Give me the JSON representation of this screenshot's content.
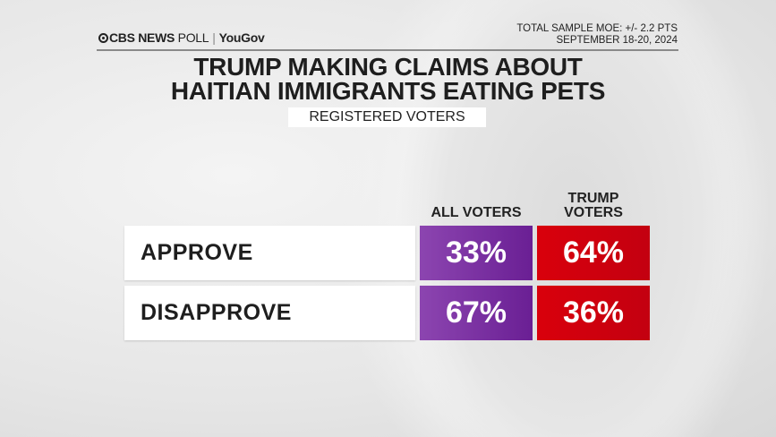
{
  "header": {
    "logo_text": "CBS NEWS POLL | YouGov",
    "logo_brand": "CBS NEWS",
    "logo_poll": "POLL",
    "logo_partner": "YouGov",
    "moe": "TOTAL SAMPLE MOE: +/- 2.2 PTS",
    "dates": "SEPTEMBER 18-20, 2024"
  },
  "title_line1": "TRUMP MAKING CLAIMS ABOUT",
  "title_line2": "HAITIAN IMMIGRANTS EATING PETS",
  "subtitle": "REGISTERED VOTERS",
  "colors": {
    "all_voters": "#7b32a3",
    "trump_voters": "#d2000e"
  },
  "chart_data": {
    "type": "table",
    "title": "TRUMP MAKING CLAIMS ABOUT HAITIAN IMMIGRANTS EATING PETS",
    "subtitle": "REGISTERED VOTERS",
    "columns": [
      "ALL VOTERS",
      "TRUMP VOTERS"
    ],
    "columns_display": [
      [
        "ALL VOTERS"
      ],
      [
        "TRUMP",
        "VOTERS"
      ]
    ],
    "rows": [
      {
        "label": "APPROVE",
        "values": [
          33,
          64
        ],
        "display": [
          "33%",
          "64%"
        ]
      },
      {
        "label": "DISAPPROVE",
        "values": [
          67,
          36
        ],
        "display": [
          "67%",
          "36%"
        ]
      }
    ],
    "unit": "%"
  }
}
